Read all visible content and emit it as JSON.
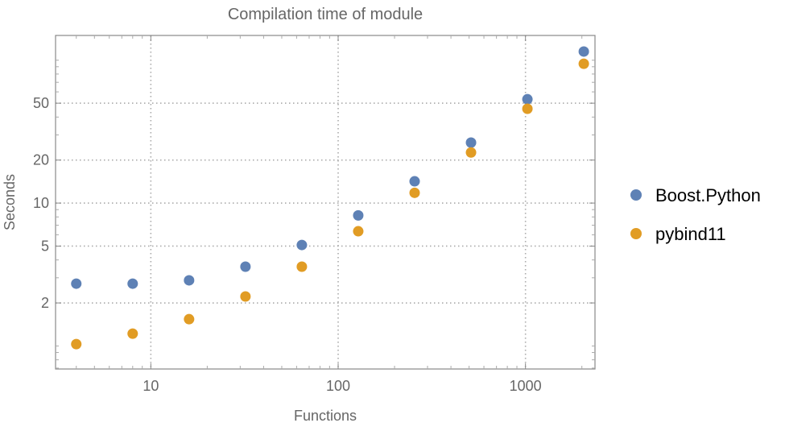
{
  "chart_data": {
    "type": "scatter",
    "title": "Compilation time of module",
    "xlabel": "Functions",
    "ylabel": "Seconds",
    "xscale": "log",
    "yscale": "log",
    "xlim": [
      3.1,
      2350
    ],
    "ylim": [
      0.69,
      149
    ],
    "grid": true,
    "legend_position": "right",
    "x_ticks": [
      10,
      100,
      1000
    ],
    "x_tick_labels": [
      "10",
      "100",
      "1000"
    ],
    "y_ticks": [
      2,
      5,
      10,
      20,
      50
    ],
    "y_tick_labels": [
      "2",
      "5",
      "10",
      "20",
      "50"
    ],
    "x": [
      4,
      8,
      16,
      32,
      64,
      128,
      256,
      512,
      1024,
      2048
    ],
    "series": [
      {
        "name": "Boost.Python",
        "color": "#5E81B5",
        "values": [
          2.73,
          2.73,
          2.88,
          3.59,
          5.09,
          8.2,
          14.2,
          26.5,
          53.3,
          115
        ]
      },
      {
        "name": "pybind11",
        "color": "#E19C24",
        "values": [
          1.03,
          1.22,
          1.54,
          2.22,
          3.59,
          6.35,
          11.8,
          22.6,
          45.7,
          94.4
        ]
      }
    ]
  }
}
